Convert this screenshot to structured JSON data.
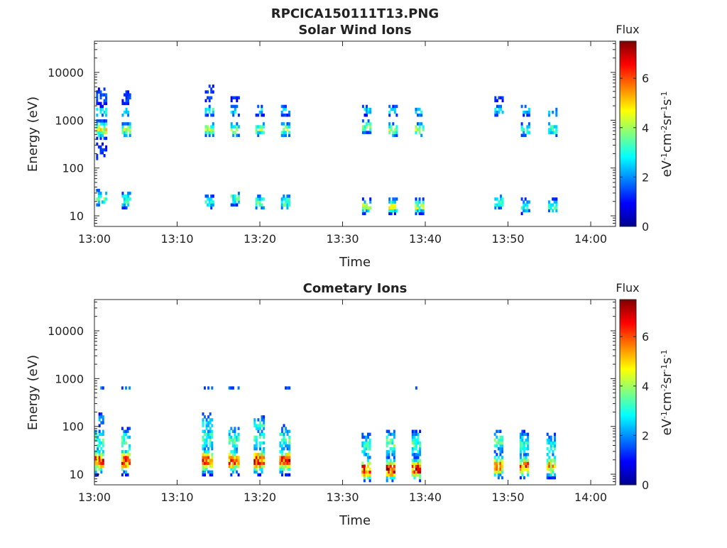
{
  "figure_title": "RPCICA150111T13.PNG",
  "chart_data": [
    {
      "type": "heatmap",
      "title": "Solar Wind Ions",
      "xlabel": "Time",
      "ylabel": "Energy (eV)",
      "x_ticks": [
        "13:00",
        "13:10",
        "13:20",
        "13:30",
        "13:40",
        "13:50",
        "14:00"
      ],
      "x_range_minutes": [
        0,
        63
      ],
      "y_scale": "log",
      "y_ticks": [
        {
          "value": 10,
          "label": "10"
        },
        {
          "value": 100,
          "label": "100"
        },
        {
          "value": 1000,
          "label": "1000"
        },
        {
          "value": 10000,
          "label": "10000"
        }
      ],
      "y_range": [
        6,
        45000
      ],
      "colorbar": {
        "title": "Flux",
        "label": "eV-1cm-2sr-1s-1",
        "range": [
          0,
          7.5
        ],
        "ticks": [
          0,
          2,
          4,
          6
        ],
        "colormap": "jet"
      },
      "grid": false,
      "bursts": [
        {
          "t": 0.8,
          "w": 1.2,
          "comps": [
            {
              "e": 600,
              "s": 0.12,
              "z": 4.2
            },
            {
              "e": 1400,
              "s": 0.08,
              "z": 3.0
            },
            {
              "e": 3000,
              "s": 0.2,
              "z": 1.5
            },
            {
              "e": 22,
              "s": 0.12,
              "z": 3.4
            },
            {
              "e": 200,
              "s": 0.25,
              "z": 1.3
            }
          ]
        },
        {
          "t": 3.8,
          "w": 1.0,
          "comps": [
            {
              "e": 600,
              "s": 0.1,
              "z": 4.0
            },
            {
              "e": 1400,
              "s": 0.08,
              "z": 2.7
            },
            {
              "e": 20,
              "s": 0.12,
              "z": 3.2
            },
            {
              "e": 3000,
              "s": 0.2,
              "z": 1.4
            }
          ]
        },
        {
          "t": 13.8,
          "w": 0.9,
          "comps": [
            {
              "e": 600,
              "s": 0.1,
              "z": 3.8
            },
            {
              "e": 1500,
              "s": 0.08,
              "z": 3.0
            },
            {
              "e": 18,
              "s": 0.1,
              "z": 3.0
            },
            {
              "e": 3500,
              "s": 0.2,
              "z": 1.5
            }
          ]
        },
        {
          "t": 16.9,
          "w": 0.9,
          "comps": [
            {
              "e": 600,
              "s": 0.1,
              "z": 3.8
            },
            {
              "e": 1500,
              "s": 0.08,
              "z": 2.8
            },
            {
              "e": 2700,
              "s": 0.1,
              "z": 1.2
            },
            {
              "e": 22,
              "s": 0.1,
              "z": 3.4
            }
          ]
        },
        {
          "t": 19.9,
          "w": 0.9,
          "comps": [
            {
              "e": 600,
              "s": 0.1,
              "z": 3.7
            },
            {
              "e": 1500,
              "s": 0.08,
              "z": 2.6
            },
            {
              "e": 18,
              "s": 0.1,
              "z": 3.3
            }
          ]
        },
        {
          "t": 23.0,
          "w": 0.9,
          "comps": [
            {
              "e": 600,
              "s": 0.1,
              "z": 3.8
            },
            {
              "e": 1500,
              "s": 0.08,
              "z": 2.7
            },
            {
              "e": 18,
              "s": 0.1,
              "z": 3.5
            }
          ]
        },
        {
          "t": 32.8,
          "w": 0.9,
          "comps": [
            {
              "e": 700,
              "s": 0.1,
              "z": 3.6
            },
            {
              "e": 1500,
              "s": 0.08,
              "z": 2.5
            },
            {
              "e": 15,
              "s": 0.1,
              "z": 3.8
            }
          ]
        },
        {
          "t": 36.0,
          "w": 0.9,
          "comps": [
            {
              "e": 600,
              "s": 0.1,
              "z": 3.8
            },
            {
              "e": 1500,
              "s": 0.08,
              "z": 2.6
            },
            {
              "e": 15,
              "s": 0.1,
              "z": 4.2
            }
          ]
        },
        {
          "t": 39.2,
          "w": 0.9,
          "comps": [
            {
              "e": 600,
              "s": 0.1,
              "z": 3.8
            },
            {
              "e": 1400,
              "s": 0.08,
              "z": 2.6
            },
            {
              "e": 15,
              "s": 0.1,
              "z": 4.0
            }
          ]
        },
        {
          "t": 48.8,
          "w": 0.9,
          "comps": [
            {
              "e": 1500,
              "s": 0.08,
              "z": 2.5
            },
            {
              "e": 2700,
              "s": 0.1,
              "z": 1.2
            },
            {
              "e": 18,
              "s": 0.1,
              "z": 3.6
            }
          ]
        },
        {
          "t": 52.0,
          "w": 0.9,
          "comps": [
            {
              "e": 600,
              "s": 0.1,
              "z": 3.2
            },
            {
              "e": 1500,
              "s": 0.08,
              "z": 2.5
            },
            {
              "e": 15,
              "s": 0.1,
              "z": 3.4
            }
          ]
        },
        {
          "t": 55.3,
          "w": 0.9,
          "comps": [
            {
              "e": 600,
              "s": 0.1,
              "z": 3.4
            },
            {
              "e": 1400,
              "s": 0.08,
              "z": 2.5
            },
            {
              "e": 15,
              "s": 0.1,
              "z": 3.2
            }
          ]
        }
      ]
    },
    {
      "type": "heatmap",
      "title": "Cometary Ions",
      "xlabel": "Time",
      "ylabel": "Energy (eV)",
      "x_ticks": [
        "13:00",
        "13:10",
        "13:20",
        "13:30",
        "13:40",
        "13:50",
        "14:00"
      ],
      "x_range_minutes": [
        0,
        63
      ],
      "y_scale": "log",
      "y_ticks": [
        {
          "value": 10,
          "label": "10"
        },
        {
          "value": 100,
          "label": "100"
        },
        {
          "value": 1000,
          "label": "1000"
        },
        {
          "value": 10000,
          "label": "10000"
        }
      ],
      "y_range": [
        6,
        45000
      ],
      "colorbar": {
        "title": "Flux",
        "label": "eV-1cm-2sr-1s-1",
        "range": [
          0,
          7.5
        ],
        "ticks": [
          0,
          2,
          4,
          6
        ],
        "colormap": "jet"
      },
      "grid": false,
      "bursts": [
        {
          "t": 0.6,
          "w": 1.1,
          "comps": [
            {
              "e": 18,
              "s": 0.16,
              "z": 5.8
            },
            {
              "e": 45,
              "s": 0.2,
              "z": 3.4
            },
            {
              "e": 600,
              "s": 0.05,
              "z": 1.6
            },
            {
              "e": 130,
              "s": 0.12,
              "z": 2.0
            }
          ]
        },
        {
          "t": 3.8,
          "w": 1.1,
          "comps": [
            {
              "e": 18,
              "s": 0.16,
              "z": 5.8
            },
            {
              "e": 45,
              "s": 0.2,
              "z": 3.2
            },
            {
              "e": 600,
              "s": 0.05,
              "z": 1.6
            }
          ]
        },
        {
          "t": 13.6,
          "w": 1.2,
          "comps": [
            {
              "e": 18,
              "s": 0.16,
              "z": 5.6
            },
            {
              "e": 50,
              "s": 0.2,
              "z": 3.2
            },
            {
              "e": 600,
              "s": 0.05,
              "z": 1.4
            },
            {
              "e": 100,
              "s": 0.2,
              "z": 2.4
            }
          ]
        },
        {
          "t": 16.8,
          "w": 1.2,
          "comps": [
            {
              "e": 18,
              "s": 0.16,
              "z": 5.8
            },
            {
              "e": 50,
              "s": 0.2,
              "z": 3.2
            },
            {
              "e": 600,
              "s": 0.05,
              "z": 1.5
            }
          ]
        },
        {
          "t": 19.8,
          "w": 1.1,
          "comps": [
            {
              "e": 18,
              "s": 0.16,
              "z": 6.0
            },
            {
              "e": 50,
              "s": 0.2,
              "z": 3.2
            },
            {
              "e": 100,
              "s": 0.15,
              "z": 2.8
            }
          ]
        },
        {
          "t": 22.9,
          "w": 1.1,
          "comps": [
            {
              "e": 18,
              "s": 0.16,
              "z": 6.0
            },
            {
              "e": 50,
              "s": 0.2,
              "z": 3.2
            },
            {
              "e": 600,
              "s": 0.05,
              "z": 1.4
            }
          ]
        },
        {
          "t": 32.8,
          "w": 1.0,
          "comps": [
            {
              "e": 12,
              "s": 0.15,
              "z": 6.0
            },
            {
              "e": 35,
              "s": 0.2,
              "z": 3.2
            }
          ]
        },
        {
          "t": 35.8,
          "w": 1.1,
          "comps": [
            {
              "e": 12,
              "s": 0.15,
              "z": 6.2
            },
            {
              "e": 40,
              "s": 0.2,
              "z": 3.4
            },
            {
              "e": 600,
              "s": 0.05,
              "z": 1.4
            }
          ]
        },
        {
          "t": 38.9,
          "w": 1.1,
          "comps": [
            {
              "e": 12,
              "s": 0.15,
              "z": 6.2
            },
            {
              "e": 40,
              "s": 0.2,
              "z": 3.4
            },
            {
              "e": 600,
              "s": 0.05,
              "z": 1.4
            }
          ]
        },
        {
          "t": 48.8,
          "w": 1.0,
          "comps": [
            {
              "e": 14,
              "s": 0.15,
              "z": 5.6
            },
            {
              "e": 45,
              "s": 0.2,
              "z": 3.2
            }
          ]
        },
        {
          "t": 51.9,
          "w": 1.0,
          "comps": [
            {
              "e": 14,
              "s": 0.15,
              "z": 5.6
            },
            {
              "e": 40,
              "s": 0.2,
              "z": 3.0
            }
          ]
        },
        {
          "t": 55.1,
          "w": 0.9,
          "comps": [
            {
              "e": 14,
              "s": 0.15,
              "z": 5.0
            },
            {
              "e": 35,
              "s": 0.2,
              "z": 3.0
            }
          ]
        }
      ]
    }
  ]
}
